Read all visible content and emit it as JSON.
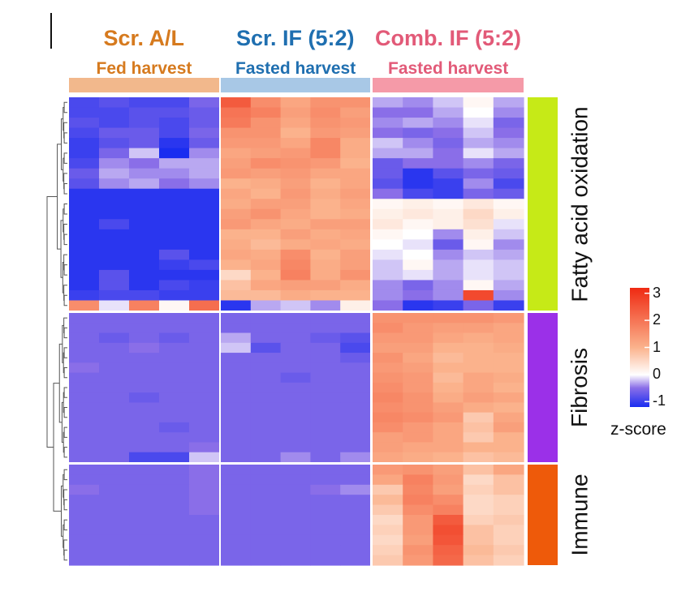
{
  "chart_data": {
    "type": "heatmap",
    "title": "",
    "groups": [
      {
        "name": "Scr. A/L",
        "harvest": "Fed harvest",
        "title_color": "#d67a1e",
        "bar_color": "#f2b88c",
        "columns": 5
      },
      {
        "name": "Scr. IF (5:2)",
        "harvest": "Fasted harvest",
        "title_color": "#1f6fb0",
        "bar_color": "#a8c8e6",
        "columns": 5
      },
      {
        "name": "Comb. IF (5:2)",
        "harvest": "Fasted harvest",
        "title_color": "#e25a78",
        "bar_color": "#f59aa8",
        "columns": 5
      }
    ],
    "modules": [
      {
        "name": "Fatty acid oxidation",
        "color": "#c6ea17",
        "rows": 21
      },
      {
        "name": "Fibrosis",
        "color": "#9b30e8",
        "rows": 15
      },
      {
        "name": "Immune",
        "color": "#ee5a0a",
        "rows": 10
      }
    ],
    "legend": {
      "title": "z-score",
      "min": -1.2,
      "max": 3.2,
      "ticks": [
        3,
        2,
        1,
        0,
        -1
      ]
    },
    "values": [
      [
        -0.9,
        -0.8,
        -0.9,
        -0.9,
        -0.6,
        2.4,
        1.6,
        1.2,
        1.5,
        1.5,
        -0.3,
        -0.4,
        -0.2,
        0.1,
        -0.3
      ],
      [
        -0.9,
        -0.9,
        -0.8,
        -0.8,
        -0.7,
        2.0,
        1.8,
        1.3,
        1.6,
        1.3,
        -0.5,
        -0.5,
        -0.3,
        0.0,
        -0.4
      ],
      [
        -0.8,
        -0.9,
        -0.8,
        -0.9,
        -0.7,
        1.9,
        1.5,
        1.2,
        1.5,
        1.4,
        -0.4,
        -0.3,
        -0.4,
        -0.1,
        -0.6
      ],
      [
        -0.9,
        -0.7,
        -0.7,
        -0.9,
        -0.6,
        1.5,
        1.5,
        1.0,
        1.4,
        1.3,
        -0.5,
        -0.6,
        -0.5,
        -0.2,
        -0.5
      ],
      [
        -1.0,
        -0.8,
        -0.7,
        -1.1,
        -0.7,
        1.4,
        1.4,
        1.2,
        1.7,
        1.1,
        -0.2,
        -0.4,
        -0.6,
        -0.3,
        -0.4
      ],
      [
        -1.0,
        -0.6,
        -0.2,
        -1.2,
        -0.4,
        1.2,
        1.3,
        1.4,
        1.7,
        1.1,
        -0.3,
        -0.3,
        -0.5,
        -0.1,
        -0.3
      ],
      [
        -0.9,
        -0.4,
        -0.5,
        -0.3,
        -0.3,
        1.3,
        1.6,
        1.5,
        1.4,
        1.0,
        -0.7,
        -0.5,
        -0.5,
        -0.4,
        -0.6
      ],
      [
        -0.7,
        -0.3,
        -0.4,
        -0.4,
        -0.3,
        1.4,
        1.3,
        1.4,
        1.2,
        1.2,
        -0.7,
        -1.1,
        -0.8,
        -0.6,
        -0.7
      ],
      [
        -0.8,
        -0.4,
        -0.3,
        -0.5,
        -0.4,
        1.0,
        1.1,
        1.3,
        1.0,
        1.2,
        -0.8,
        -1.1,
        -1.0,
        -0.4,
        -0.9
      ],
      [
        -1.1,
        -1.1,
        -1.1,
        -1.1,
        -1.1,
        1.2,
        1.0,
        1.4,
        1.1,
        1.3,
        -0.5,
        -0.9,
        -1.0,
        -0.6,
        -0.7
      ],
      [
        -1.1,
        -1.1,
        -1.1,
        -1.1,
        -1.1,
        1.1,
        1.3,
        1.3,
        1.0,
        1.2,
        0.1,
        0.2,
        0.1,
        0.3,
        0.1
      ],
      [
        -1.1,
        -1.1,
        -1.1,
        -1.1,
        -1.1,
        1.3,
        1.5,
        1.2,
        1.0,
        1.1,
        0.2,
        0.3,
        0.2,
        0.5,
        0.2
      ],
      [
        -1.1,
        -0.9,
        -1.1,
        -1.1,
        -1.1,
        1.4,
        1.2,
        1.1,
        1.3,
        1.3,
        0.3,
        0.1,
        0.2,
        0.4,
        -0.1
      ],
      [
        -1.1,
        -1.1,
        -1.1,
        -1.1,
        -1.1,
        1.0,
        1.0,
        1.3,
        1.1,
        1.2,
        0.1,
        0.0,
        -0.4,
        0.2,
        -0.2
      ],
      [
        -1.1,
        -1.1,
        -1.1,
        -1.1,
        -1.1,
        1.1,
        0.9,
        1.1,
        1.2,
        1.1,
        0.0,
        -0.1,
        -0.7,
        0.1,
        -0.4
      ],
      [
        -1.1,
        -1.1,
        -1.1,
        -0.8,
        -1.1,
        1.2,
        1.1,
        1.6,
        1.0,
        1.3,
        -0.1,
        0.0,
        -0.4,
        -0.2,
        -0.3
      ],
      [
        -1.1,
        -1.1,
        -1.1,
        -1.0,
        -0.9,
        1.0,
        1.2,
        1.7,
        1.1,
        1.3,
        -0.2,
        0.1,
        -0.3,
        -0.1,
        -0.2
      ],
      [
        -1.1,
        -0.8,
        -1.1,
        -1.1,
        -1.1,
        0.5,
        1.0,
        1.8,
        1.1,
        1.5,
        -0.2,
        -0.1,
        -0.3,
        -0.1,
        -0.2
      ],
      [
        -1.1,
        -0.8,
        -1.1,
        -0.9,
        -1.0,
        0.8,
        1.2,
        1.3,
        1.3,
        1.1,
        -0.4,
        -0.6,
        -0.4,
        0.1,
        -0.3
      ],
      [
        -1.0,
        -0.9,
        -0.9,
        -1.0,
        -1.0,
        0.9,
        0.9,
        1.1,
        1.0,
        1.0,
        -0.4,
        -0.5,
        -0.4,
        2.7,
        -0.4
      ],
      [
        1.6,
        -0.1,
        1.8,
        0.1,
        2.1,
        -1.1,
        -0.3,
        -0.2,
        -0.4,
        0.2,
        -0.5,
        -1.1,
        -1.0,
        -0.6,
        -1.0
      ],
      [
        -0.6,
        -0.6,
        -0.6,
        -0.6,
        -0.6,
        -0.6,
        -0.6,
        -0.6,
        -0.6,
        -0.6,
        1.5,
        1.5,
        1.5,
        1.5,
        1.4
      ],
      [
        -0.6,
        -0.6,
        -0.6,
        -0.6,
        -0.6,
        -0.6,
        -0.6,
        -0.6,
        -0.6,
        -0.6,
        1.6,
        1.4,
        1.3,
        1.3,
        1.2
      ],
      [
        -0.6,
        -0.7,
        -0.6,
        -0.7,
        -0.6,
        -0.3,
        -0.6,
        -0.6,
        -0.7,
        -0.8,
        1.4,
        1.4,
        1.2,
        1.1,
        1.2
      ],
      [
        -0.6,
        -0.6,
        -0.5,
        -0.6,
        -0.6,
        -0.2,
        -0.8,
        -0.6,
        -0.6,
        -0.9,
        1.3,
        1.3,
        1.0,
        1.0,
        1.1
      ],
      [
        -0.6,
        -0.6,
        -0.6,
        -0.6,
        -0.6,
        -0.6,
        -0.6,
        -0.6,
        -0.6,
        -0.7,
        1.5,
        1.2,
        0.9,
        1.0,
        1.0
      ],
      [
        -0.5,
        -0.6,
        -0.6,
        -0.6,
        -0.6,
        -0.6,
        -0.6,
        -0.6,
        -0.6,
        -0.6,
        1.4,
        1.3,
        1.0,
        1.0,
        1.0
      ],
      [
        -0.6,
        -0.6,
        -0.6,
        -0.6,
        -0.6,
        -0.6,
        -0.6,
        -0.7,
        -0.6,
        -0.6,
        1.5,
        1.4,
        0.9,
        1.2,
        1.1
      ],
      [
        -0.6,
        -0.6,
        -0.6,
        -0.6,
        -0.6,
        -0.6,
        -0.6,
        -0.6,
        -0.6,
        -0.6,
        1.6,
        1.4,
        1.0,
        1.2,
        1.0
      ],
      [
        -0.6,
        -0.6,
        -0.7,
        -0.6,
        -0.6,
        -0.6,
        -0.6,
        -0.6,
        -0.6,
        -0.6,
        1.7,
        1.5,
        1.1,
        1.3,
        1.2
      ],
      [
        -0.6,
        -0.6,
        -0.6,
        -0.6,
        -0.6,
        -0.6,
        -0.6,
        -0.6,
        -0.6,
        -0.6,
        1.6,
        1.5,
        1.3,
        1.1,
        1.0
      ],
      [
        -0.6,
        -0.6,
        -0.6,
        -0.6,
        -0.6,
        -0.6,
        -0.6,
        -0.6,
        -0.6,
        -0.6,
        1.7,
        1.6,
        1.4,
        0.7,
        1.2
      ],
      [
        -0.6,
        -0.6,
        -0.6,
        -0.7,
        -0.6,
        -0.6,
        -0.6,
        -0.6,
        -0.6,
        -0.6,
        1.6,
        1.4,
        1.2,
        0.8,
        1.3
      ],
      [
        -0.6,
        -0.6,
        -0.6,
        -0.6,
        -0.6,
        -0.6,
        -0.6,
        -0.6,
        -0.6,
        -0.6,
        1.3,
        1.4,
        1.2,
        0.7,
        1.0
      ],
      [
        -0.6,
        -0.6,
        -0.6,
        -0.6,
        -0.5,
        -0.6,
        -0.6,
        -0.6,
        -0.6,
        -0.6,
        1.3,
        1.2,
        1.2,
        1.0,
        1.0
      ],
      [
        -0.6,
        -0.6,
        -0.9,
        -0.9,
        -0.2,
        -0.6,
        -0.6,
        -0.4,
        -0.6,
        -0.4,
        1.2,
        1.1,
        1.0,
        0.8,
        0.9
      ],
      [
        -0.6,
        -0.6,
        -0.6,
        -0.6,
        -0.5,
        -0.6,
        -0.6,
        -0.6,
        -0.6,
        -0.6,
        1.4,
        1.5,
        1.3,
        0.8,
        1.2
      ],
      [
        -0.6,
        -0.6,
        -0.6,
        -0.6,
        -0.5,
        -0.6,
        -0.6,
        -0.6,
        -0.6,
        -0.6,
        1.2,
        1.8,
        1.4,
        0.5,
        0.8
      ],
      [
        -0.5,
        -0.6,
        -0.6,
        -0.6,
        -0.5,
        -0.6,
        -0.6,
        -0.6,
        -0.5,
        -0.4,
        0.7,
        1.7,
        1.3,
        0.6,
        0.8
      ],
      [
        -0.6,
        -0.6,
        -0.6,
        -0.6,
        -0.5,
        -0.6,
        -0.6,
        -0.6,
        -0.6,
        -0.6,
        0.9,
        1.8,
        1.6,
        0.5,
        0.6
      ],
      [
        -0.6,
        -0.6,
        -0.6,
        -0.6,
        -0.5,
        -0.6,
        -0.6,
        -0.6,
        -0.6,
        -0.6,
        0.7,
        1.6,
        1.8,
        0.5,
        0.6
      ],
      [
        -0.6,
        -0.6,
        -0.6,
        -0.6,
        -0.6,
        -0.6,
        -0.6,
        -0.6,
        -0.6,
        -0.6,
        0.5,
        1.4,
        2.4,
        0.6,
        0.7
      ],
      [
        -0.6,
        -0.6,
        -0.6,
        -0.6,
        -0.6,
        -0.6,
        -0.6,
        -0.6,
        -0.6,
        -0.6,
        0.6,
        1.4,
        2.6,
        0.8,
        0.6
      ],
      [
        -0.6,
        -0.6,
        -0.6,
        -0.6,
        -0.6,
        -0.6,
        -0.6,
        -0.6,
        -0.6,
        -0.6,
        0.5,
        1.3,
        2.5,
        0.8,
        0.6
      ],
      [
        -0.6,
        -0.6,
        -0.6,
        -0.6,
        -0.6,
        -0.6,
        -0.6,
        -0.6,
        -0.6,
        -0.6,
        0.6,
        1.5,
        2.3,
        0.9,
        0.7
      ],
      [
        -0.6,
        -0.6,
        -0.6,
        -0.6,
        -0.6,
        -0.6,
        -0.6,
        -0.6,
        -0.6,
        -0.6,
        0.7,
        1.4,
        2.2,
        0.8,
        0.6
      ]
    ]
  }
}
